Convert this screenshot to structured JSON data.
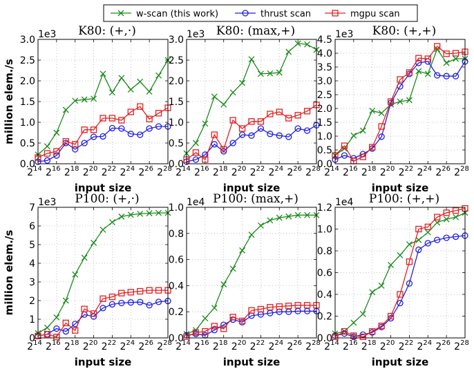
{
  "legend": {
    "items": [
      {
        "label": "w-scan (this work)",
        "color": "#1a8a1a",
        "marker": "x"
      },
      {
        "label": "thrust scan",
        "color": "#1f1fe0",
        "marker": "circle"
      },
      {
        "label": "mgpu scan",
        "color": "#e02020",
        "marker": "square"
      }
    ]
  },
  "shared": {
    "xlabel": "input size",
    "ylabel": "million elem./s",
    "x_exponent_ticks": [
      "14",
      "16",
      "18",
      "20",
      "22",
      "24",
      "26",
      "28"
    ]
  },
  "chart_data": [
    {
      "type": "line",
      "title": "K80: (+,·)",
      "offset_label": "1e3",
      "ylim": [
        0,
        3.0
      ],
      "yticks": [
        "0.0",
        "0.5",
        "1.0",
        "1.5",
        "2.0",
        "2.5",
        "3.0"
      ],
      "xlabel": "input size",
      "ylabel": "million elem./s",
      "x": [
        14,
        15,
        16,
        17,
        18,
        19,
        20,
        21,
        22,
        23,
        24,
        25,
        26,
        27,
        28
      ],
      "series": [
        {
          "name": "w-scan (this work)",
          "values": [
            0.22,
            0.42,
            0.75,
            1.3,
            1.52,
            1.55,
            1.57,
            2.17,
            1.72,
            2.07,
            1.79,
            1.98,
            1.74,
            2.13,
            2.5
          ]
        },
        {
          "name": "thrust scan",
          "values": [
            0.05,
            0.08,
            0.2,
            0.5,
            0.35,
            0.5,
            0.65,
            0.66,
            0.86,
            0.85,
            0.72,
            0.7,
            0.85,
            0.9,
            0.9
          ]
        },
        {
          "name": "mgpu scan",
          "values": [
            0.15,
            0.25,
            0.3,
            0.54,
            0.47,
            0.82,
            0.82,
            1.1,
            1.1,
            1.05,
            1.25,
            1.38,
            1.08,
            1.22,
            1.35
          ]
        }
      ]
    },
    {
      "type": "line",
      "title": "K80: (max,+)",
      "offset_label": "1e3",
      "ylim": [
        0,
        3.0
      ],
      "yticks": [
        "0.0",
        "0.5",
        "1.0",
        "1.5",
        "2.0",
        "2.5",
        "3.0"
      ],
      "xlabel": "input size",
      "ylabel": "",
      "x": [
        14,
        15,
        16,
        17,
        18,
        19,
        20,
        21,
        22,
        23,
        24,
        25,
        26,
        27,
        28
      ],
      "series": [
        {
          "name": "w-scan (this work)",
          "values": [
            0.25,
            0.5,
            0.97,
            1.62,
            1.43,
            1.72,
            1.95,
            2.52,
            2.17,
            2.18,
            2.2,
            2.7,
            2.9,
            2.88,
            2.75
          ]
        },
        {
          "name": "thrust scan",
          "values": [
            0.05,
            0.1,
            0.22,
            0.47,
            0.3,
            0.5,
            0.7,
            0.68,
            0.85,
            0.72,
            0.68,
            0.65,
            0.85,
            0.8,
            0.93
          ]
        },
        {
          "name": "mgpu scan",
          "values": [
            0.1,
            0.27,
            0.1,
            0.7,
            0.35,
            1.05,
            0.85,
            1.02,
            1.02,
            1.2,
            1.25,
            1.1,
            1.17,
            1.27,
            1.42
          ]
        }
      ]
    },
    {
      "type": "line",
      "title": "K80: (+,+)",
      "offset_label": "1e3",
      "ylim": [
        0,
        4.5
      ],
      "yticks": [
        "0.0",
        "0.5",
        "1.0",
        "1.5",
        "2.0",
        "2.5",
        "3.0",
        "3.5",
        "4.0",
        "4.5"
      ],
      "xlabel": "input size",
      "ylabel": "",
      "x": [
        14,
        15,
        16,
        17,
        18,
        19,
        20,
        21,
        22,
        23,
        24,
        25,
        26,
        27,
        28
      ],
      "series": [
        {
          "name": "w-scan (this work)",
          "values": [
            0.3,
            0.55,
            1.02,
            1.2,
            1.92,
            1.83,
            2.15,
            2.25,
            2.3,
            3.35,
            3.25,
            4.15,
            3.65,
            3.8,
            3.8
          ]
        },
        {
          "name": "thrust scan",
          "values": [
            0.15,
            0.3,
            0.2,
            0.35,
            0.55,
            0.98,
            2.2,
            2.8,
            3.25,
            3.65,
            3.7,
            3.2,
            3.17,
            3.17,
            3.7
          ]
        },
        {
          "name": "mgpu scan",
          "values": [
            0.3,
            0.65,
            0.1,
            0.25,
            0.6,
            1.35,
            2.25,
            3.05,
            3.3,
            3.82,
            3.8,
            4.25,
            3.98,
            4.0,
            4.05
          ]
        }
      ]
    },
    {
      "type": "line",
      "title": "P100: (+,·)",
      "offset_label": "1e3",
      "ylim": [
        0,
        7
      ],
      "yticks": [
        "0",
        "1",
        "2",
        "3",
        "4",
        "5",
        "6",
        "7"
      ],
      "xlabel": "input size",
      "ylabel": "million elem./s",
      "x": [
        14,
        15,
        16,
        17,
        18,
        19,
        20,
        21,
        22,
        23,
        24,
        25,
        26,
        27,
        28
      ],
      "series": [
        {
          "name": "w-scan (this work)",
          "values": [
            0.25,
            0.55,
            1.1,
            2.0,
            3.4,
            4.3,
            5.1,
            5.8,
            6.2,
            6.5,
            6.6,
            6.65,
            6.68,
            6.7,
            6.7
          ]
        },
        {
          "name": "thrust scan",
          "values": [
            0.1,
            0.2,
            0.5,
            0.35,
            0.75,
            1.25,
            1.15,
            1.6,
            1.8,
            1.87,
            1.9,
            1.92,
            1.75,
            1.93,
            1.98
          ]
        },
        {
          "name": "mgpu scan",
          "values": [
            0.1,
            0.2,
            0.05,
            0.8,
            0.4,
            1.55,
            1.3,
            2.1,
            2.2,
            2.4,
            2.45,
            2.5,
            2.55,
            2.55,
            2.55
          ]
        }
      ]
    },
    {
      "type": "line",
      "title": "P100: (max,+)",
      "offset_label": "1e4",
      "ylim": [
        0,
        1.0
      ],
      "yticks": [
        "0.0",
        "0.2",
        "0.4",
        "0.6",
        "0.8",
        "1.0"
      ],
      "xlabel": "input size",
      "ylabel": "",
      "x": [
        14,
        15,
        16,
        17,
        18,
        19,
        20,
        21,
        22,
        23,
        24,
        25,
        26,
        27,
        28
      ],
      "series": [
        {
          "name": "w-scan (this work)",
          "values": [
            0.03,
            0.06,
            0.15,
            0.23,
            0.41,
            0.53,
            0.67,
            0.79,
            0.86,
            0.9,
            0.92,
            0.93,
            0.94,
            0.94,
            0.94
          ]
        },
        {
          "name": "thrust scan",
          "values": [
            0.02,
            0.03,
            0.02,
            0.06,
            0.1,
            0.14,
            0.12,
            0.17,
            0.18,
            0.19,
            0.2,
            0.2,
            0.205,
            0.205,
            0.205
          ]
        },
        {
          "name": "mgpu scan",
          "values": [
            0.01,
            0.04,
            0.05,
            0.09,
            0.07,
            0.16,
            0.13,
            0.21,
            0.22,
            0.235,
            0.24,
            0.245,
            0.25,
            0.25,
            0.25
          ]
        }
      ]
    },
    {
      "type": "line",
      "title": "P100: (+,+)",
      "offset_label": "1e4",
      "ylim": [
        0,
        1.2
      ],
      "yticks": [
        "0.0",
        "0.2",
        "0.4",
        "0.6",
        "0.8",
        "1.0",
        "1.2"
      ],
      "xlabel": "input size",
      "ylabel": "",
      "x": [
        14,
        15,
        16,
        17,
        18,
        19,
        20,
        21,
        22,
        23,
        24,
        25,
        26,
        27,
        28
      ],
      "series": [
        {
          "name": "w-scan (this work)",
          "values": [
            0.04,
            0.06,
            0.14,
            0.22,
            0.42,
            0.48,
            0.67,
            0.76,
            0.86,
            0.9,
            0.97,
            1.06,
            1.09,
            1.11,
            1.15
          ]
        },
        {
          "name": "thrust scan",
          "values": [
            0.02,
            0.04,
            0.01,
            0.03,
            0.05,
            0.1,
            0.18,
            0.32,
            0.5,
            0.81,
            0.87,
            0.9,
            0.92,
            0.93,
            0.94
          ]
        },
        {
          "name": "mgpu scan",
          "values": [
            0.01,
            0.06,
            0.02,
            0.01,
            0.06,
            0.11,
            0.2,
            0.4,
            0.7,
            1.0,
            1.02,
            1.11,
            1.15,
            1.17,
            1.19
          ]
        }
      ]
    }
  ]
}
